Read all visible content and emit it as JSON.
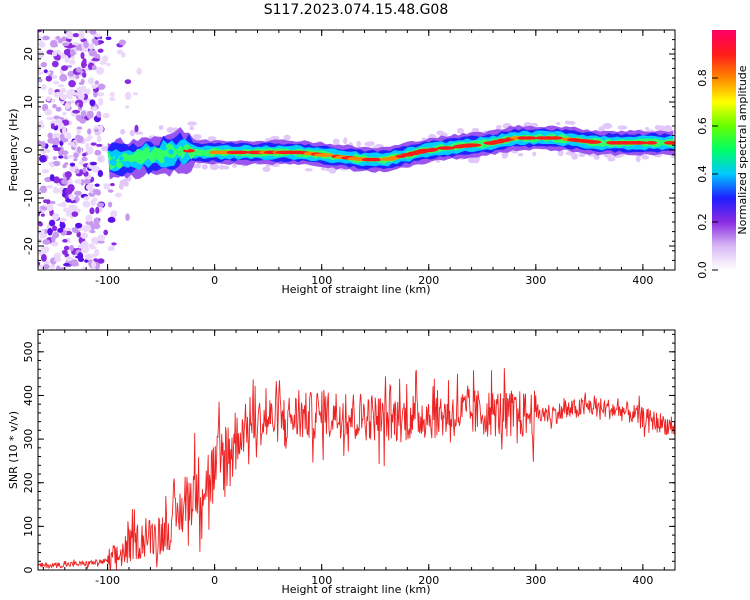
{
  "title": "S117.2023.074.15.48.G08",
  "chart_data": [
    {
      "type": "heatmap",
      "xlabel": "Height of straight line (km)",
      "ylabel": "Frequency (Hz)",
      "xlim": [
        -165,
        430
      ],
      "ylim": [
        -25,
        25
      ],
      "xticks": [
        -100,
        0,
        100,
        200,
        300,
        400
      ],
      "yticks": [
        -20,
        -10,
        0,
        10,
        20
      ],
      "ridge": {
        "x": [
          -90,
          -70,
          -50,
          -30,
          -10,
          0,
          20,
          50,
          80,
          100,
          120,
          140,
          160,
          180,
          200,
          220,
          240,
          260,
          280,
          300,
          320,
          340,
          360,
          380,
          400,
          430
        ],
        "freq": [
          -2.0,
          -1.5,
          -1.0,
          0.0,
          -0.5,
          -0.5,
          -0.5,
          -0.5,
          -0.5,
          -1.0,
          -1.5,
          -2.0,
          -2.0,
          -1.0,
          0.0,
          0.5,
          1.0,
          1.5,
          2.5,
          2.5,
          2.5,
          2.0,
          1.5,
          1.5,
          1.5,
          1.5
        ]
      },
      "colorbar": {
        "label": "Normalized spectral amplitude",
        "range": [
          0,
          1
        ],
        "ticks": [
          "0.0",
          "0.2",
          "0.4",
          "0.6",
          "0.8"
        ],
        "colors": [
          "#ffffff",
          "#d9b8f5",
          "#8a2be2",
          "#1f1fff",
          "#00c8ff",
          "#00ff66",
          "#66ff00",
          "#ffff00",
          "#ff8800",
          "#ff1a1a",
          "#ff0066"
        ]
      }
    },
    {
      "type": "line",
      "xlabel": "Height of straight line (km)",
      "ylabel": "SNR (10 * v/v)",
      "xlim": [
        -165,
        430
      ],
      "ylim": [
        0,
        550
      ],
      "xticks": [
        -100,
        0,
        100,
        200,
        300,
        400
      ],
      "yticks": [
        0,
        100,
        200,
        300,
        400,
        500
      ],
      "color": "#ee2222",
      "x": [
        -165,
        -140,
        -120,
        -100,
        -90,
        -80,
        -70,
        -60,
        -50,
        -40,
        -30,
        -20,
        -10,
        0,
        10,
        20,
        30,
        50,
        80,
        100,
        105,
        130,
        150,
        158,
        180,
        200,
        230,
        260,
        290,
        320,
        350,
        380,
        400,
        420,
        430
      ],
      "y": [
        10,
        12,
        15,
        20,
        30,
        55,
        70,
        75,
        85,
        100,
        140,
        180,
        200,
        220,
        260,
        300,
        330,
        345,
        350,
        355,
        360,
        355,
        350,
        345,
        350,
        355,
        360,
        360,
        355,
        360,
        375,
        365,
        350,
        335,
        325
      ]
    }
  ]
}
